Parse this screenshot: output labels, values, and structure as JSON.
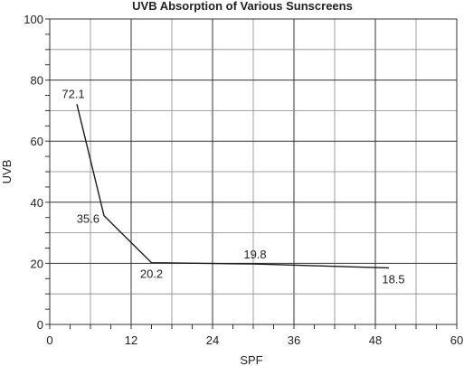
{
  "chart_data": {
    "type": "line",
    "title": "UVB Absorption of Various Sunscreens",
    "xlabel": "SPF",
    "ylabel": "UVB",
    "xlim": [
      0,
      60
    ],
    "ylim": [
      0,
      100
    ],
    "x_ticks": [
      0,
      12,
      24,
      36,
      48,
      60
    ],
    "y_ticks": [
      0,
      20,
      40,
      60,
      80,
      100
    ],
    "x_tick_labels": [
      "0",
      "12",
      "24",
      "36",
      "48",
      "60"
    ],
    "y_tick_labels": [
      "0",
      "20",
      "40",
      "60",
      "80",
      "100"
    ],
    "grid": true,
    "series": [
      {
        "points": [
          {
            "x": 4,
            "y": 72.1,
            "label": "72.1"
          },
          {
            "x": 8,
            "y": 35.6,
            "label": "35.6"
          },
          {
            "x": 15,
            "y": 20.2,
            "label": "20.2"
          },
          {
            "x": 30,
            "y": 19.8,
            "label": "19.8"
          },
          {
            "x": 50,
            "y": 18.5,
            "label": "18.5"
          }
        ]
      }
    ]
  }
}
